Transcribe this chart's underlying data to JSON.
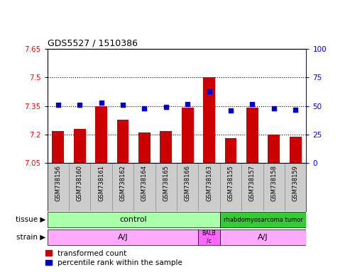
{
  "title": "GDS5527 / 1510386",
  "samples": [
    "GSM738156",
    "GSM738160",
    "GSM738161",
    "GSM738162",
    "GSM738164",
    "GSM738165",
    "GSM738166",
    "GSM738163",
    "GSM738155",
    "GSM738157",
    "GSM738158",
    "GSM738159"
  ],
  "transformed_count": [
    7.22,
    7.23,
    7.35,
    7.28,
    7.21,
    7.22,
    7.34,
    7.5,
    7.18,
    7.34,
    7.2,
    7.19
  ],
  "percentile_rank": [
    51,
    51,
    53,
    51,
    48,
    49,
    52,
    63,
    46,
    52,
    48,
    47
  ],
  "ylim_left": [
    7.05,
    7.65
  ],
  "ylim_right": [
    0,
    100
  ],
  "yticks_left": [
    7.05,
    7.2,
    7.35,
    7.5,
    7.65
  ],
  "yticks_right": [
    0,
    25,
    50,
    75,
    100
  ],
  "bar_color": "#cc0000",
  "dot_color": "#0000cc",
  "control_color": "#aaffaa",
  "tumor_color": "#33cc33",
  "strain_aj_color": "#ffaaff",
  "strain_balb_color": "#ff66ff",
  "xlabels_bg": "#cccccc",
  "background_color": "#ffffff",
  "border_color": "#000000"
}
